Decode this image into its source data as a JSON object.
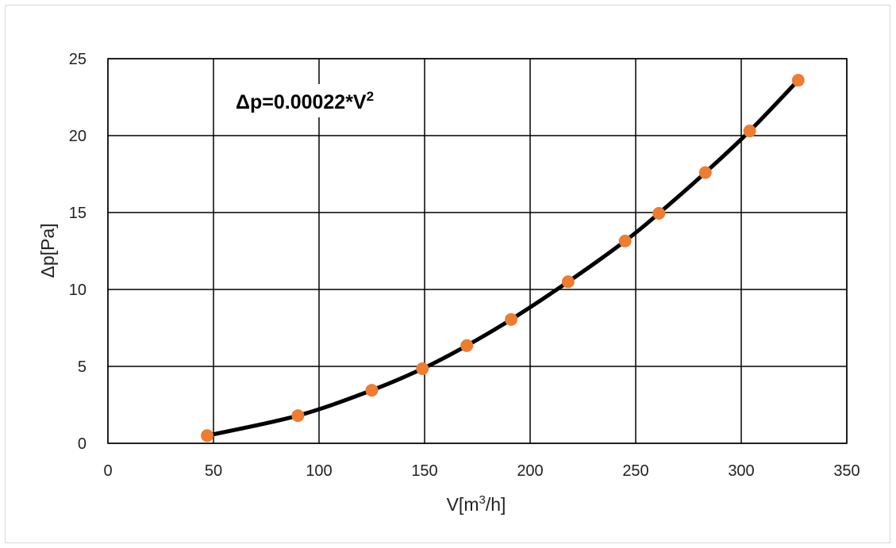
{
  "chart_data": {
    "type": "scatter",
    "title": "",
    "annotation": {
      "main": "Δp=0.00022*V",
      "sup": "2"
    },
    "xlabel": {
      "main": "V[m",
      "sup": "3",
      "rest": "/h]"
    },
    "ylabel": "Δp[Pa]",
    "xlim": [
      0,
      350
    ],
    "ylim": [
      0,
      25
    ],
    "x_ticks": [
      0,
      50,
      100,
      150,
      200,
      250,
      300,
      350
    ],
    "y_ticks": [
      0,
      5,
      10,
      15,
      20,
      25
    ],
    "grid": true,
    "legend": "none",
    "series": [
      {
        "x": [
          47,
          90,
          125,
          149,
          170,
          191,
          218,
          245,
          261,
          283,
          304,
          327
        ],
        "y": [
          0.5,
          1.8,
          3.45,
          4.85,
          6.35,
          8.05,
          10.5,
          13.15,
          14.95,
          17.6,
          20.3,
          23.6
        ],
        "marker_color": "#ED7D31",
        "line_color": "#000000",
        "smooth": true
      }
    ]
  }
}
